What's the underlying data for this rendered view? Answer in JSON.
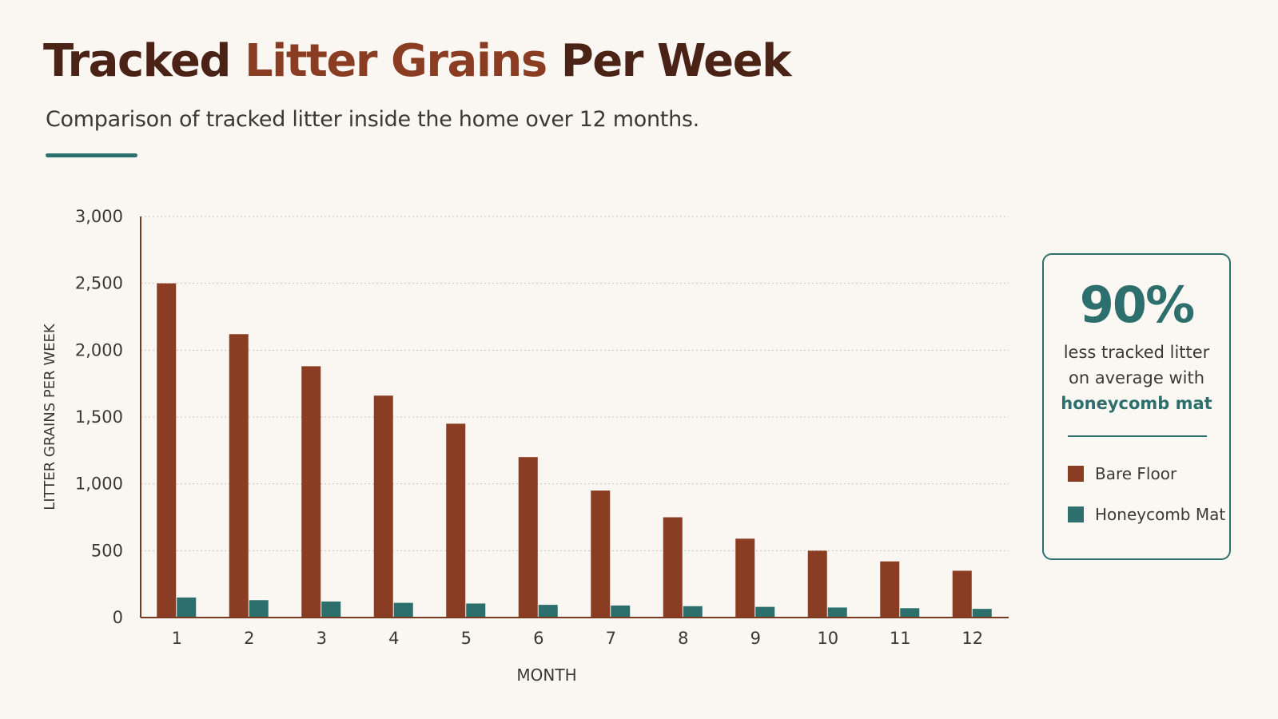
{
  "title": {
    "part1": "Tracked ",
    "part2": "Litter Grains",
    "part3": " Per Week"
  },
  "subtitle": "Comparison of tracked litter inside the home over 12 months.",
  "colors": {
    "bare": "#8a3d22",
    "mat": "#2d6f6c",
    "title": "#4a2216",
    "accent": "#2d6f6c"
  },
  "callout": {
    "stat": "90%",
    "line1": "less tracked litter",
    "line2": "on average with",
    "line3": "honeycomb mat"
  },
  "legend": {
    "bare": "Bare Floor",
    "mat": "Honeycomb Mat"
  },
  "chart_data": {
    "type": "bar",
    "title": "Tracked Litter Grains Per Week",
    "subtitle": "Comparison of tracked litter inside the home over 12 months.",
    "xlabel": "MONTH",
    "ylabel": "LITTER GRAINS PER WEEK",
    "categories": [
      "1",
      "2",
      "3",
      "4",
      "5",
      "6",
      "7",
      "8",
      "9",
      "10",
      "11",
      "12"
    ],
    "ylim": [
      0,
      3000
    ],
    "yticks": [
      0,
      500,
      1000,
      1500,
      2000,
      2500,
      3000
    ],
    "ytick_labels": [
      "0",
      "500",
      "1,000",
      "1,500",
      "2,000",
      "2,500",
      "3,000"
    ],
    "grid": true,
    "legend_position": "right",
    "series": [
      {
        "name": "Bare Floor",
        "values": [
          2500,
          2120,
          1880,
          1660,
          1450,
          1200,
          950,
          750,
          590,
          500,
          420,
          350
        ]
      },
      {
        "name": "Honeycomb Mat",
        "values": [
          150,
          130,
          120,
          110,
          105,
          95,
          90,
          85,
          80,
          75,
          70,
          65
        ]
      }
    ]
  }
}
